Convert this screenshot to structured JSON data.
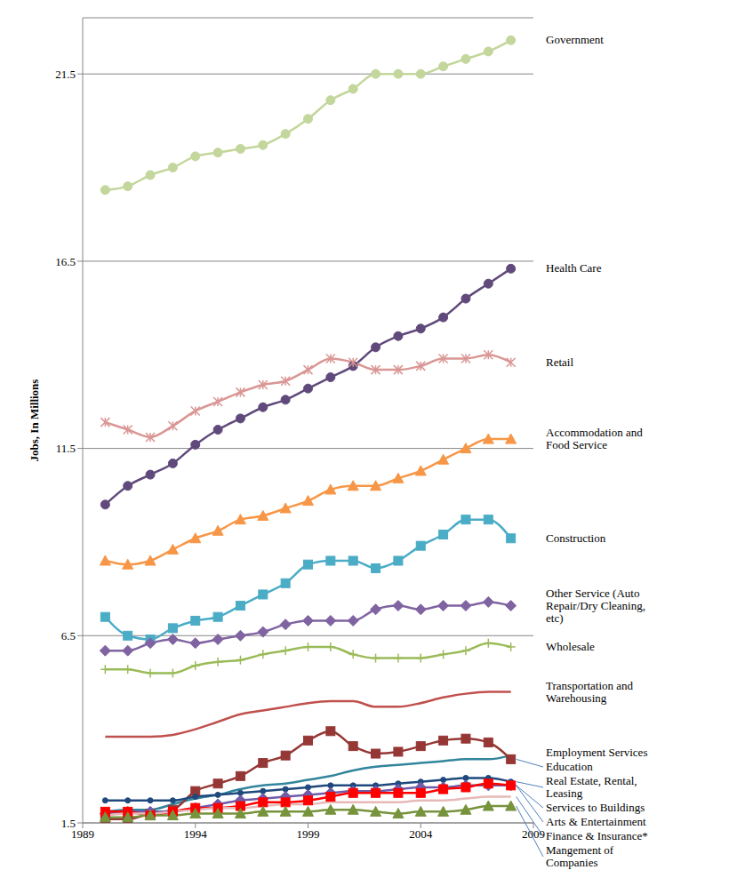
{
  "chart_data": {
    "type": "line",
    "y_label": "Jobs, In Millions",
    "grid": true,
    "x": [
      1990,
      1991,
      1992,
      1993,
      1994,
      1995,
      1996,
      1997,
      1998,
      1999,
      2000,
      2001,
      2002,
      2003,
      2004,
      2005,
      2006,
      2007,
      2008
    ],
    "xlim": [
      1989,
      2009
    ],
    "xticks": [
      1989,
      1994,
      1999,
      2004,
      2009
    ],
    "ylim": [
      1.5,
      23
    ],
    "yticks": [
      1.5,
      6.5,
      11.5,
      16.5,
      21.5
    ],
    "series": [
      {
        "name": "Government",
        "color": "#c3d69b",
        "marker": "circle",
        "values": [
          18.4,
          18.5,
          18.8,
          19.0,
          19.3,
          19.4,
          19.5,
          19.6,
          19.9,
          20.3,
          20.8,
          21.1,
          21.5,
          21.5,
          21.5,
          21.7,
          21.9,
          22.1,
          22.4
        ]
      },
      {
        "name": "Health Care",
        "color": "#604a7b",
        "marker": "circle",
        "values": [
          10.0,
          10.5,
          10.8,
          11.1,
          11.6,
          12.0,
          12.3,
          12.6,
          12.8,
          13.1,
          13.4,
          13.7,
          14.2,
          14.5,
          14.7,
          15.0,
          15.5,
          15.9,
          16.3
        ]
      },
      {
        "name": "Retail",
        "color": "#d99694",
        "marker": "x",
        "values": [
          12.2,
          12.0,
          11.8,
          12.1,
          12.5,
          12.75,
          13.0,
          13.2,
          13.3,
          13.6,
          13.9,
          13.8,
          13.6,
          13.6,
          13.7,
          13.9,
          13.9,
          14.0,
          13.8
        ]
      },
      {
        "name": "Accommodation and Food Service",
        "color": "#f79646",
        "marker": "triangle",
        "values": [
          8.5,
          8.4,
          8.5,
          8.8,
          9.1,
          9.3,
          9.6,
          9.7,
          9.9,
          10.1,
          10.4,
          10.5,
          10.5,
          10.7,
          10.9,
          11.2,
          11.5,
          11.75,
          11.75
        ]
      },
      {
        "name": "Construction",
        "color": "#4bacc6",
        "marker": "square",
        "values": [
          7.0,
          6.5,
          6.4,
          6.7,
          6.9,
          7.0,
          7.3,
          7.6,
          7.9,
          8.4,
          8.5,
          8.5,
          8.3,
          8.5,
          8.9,
          9.2,
          9.6,
          9.6,
          9.1
        ]
      },
      {
        "name": "Other Service (Auto Repair/Dry Cleaning, etc)",
        "color": "#8064a2",
        "marker": "diamond",
        "values": [
          6.1,
          6.1,
          6.3,
          6.4,
          6.3,
          6.4,
          6.5,
          6.6,
          6.8,
          6.9,
          6.9,
          6.9,
          7.2,
          7.3,
          7.2,
          7.3,
          7.3,
          7.4,
          7.3
        ]
      },
      {
        "name": "Wholesale",
        "color": "#9bbb59",
        "marker": "plus",
        "values": [
          5.6,
          5.6,
          5.5,
          5.5,
          5.7,
          5.8,
          5.85,
          6.0,
          6.1,
          6.2,
          6.2,
          6.0,
          5.9,
          5.9,
          5.9,
          6.0,
          6.1,
          6.3,
          6.2
        ]
      },
      {
        "name": "Transportation and Warehousing",
        "color": "#c0504d",
        "marker": "none",
        "values": [
          3.8,
          3.8,
          3.8,
          3.85,
          4.0,
          4.2,
          4.4,
          4.5,
          4.6,
          4.7,
          4.75,
          4.75,
          4.6,
          4.6,
          4.7,
          4.85,
          4.95,
          5.0,
          5.0
        ]
      },
      {
        "name": "Employment Services",
        "color": "#31859c",
        "marker": "none",
        "values": [
          1.8,
          1.85,
          1.85,
          2.0,
          2.15,
          2.25,
          2.4,
          2.5,
          2.55,
          2.65,
          2.75,
          2.9,
          3.0,
          3.05,
          3.1,
          3.15,
          3.2,
          3.2,
          3.3
        ]
      },
      {
        "name": "Education",
        "color": "#953735",
        "marker": "square",
        "values": [
          1.6,
          1.6,
          1.75,
          1.85,
          2.35,
          2.55,
          2.75,
          3.1,
          3.3,
          3.7,
          3.95,
          3.55,
          3.35,
          3.4,
          3.55,
          3.7,
          3.75,
          3.65,
          3.2
        ]
      },
      {
        "name": "Real Estate, Rental, Leasing",
        "color": "#1f497d",
        "marker": "dot",
        "values": [
          2.1,
          2.1,
          2.1,
          2.1,
          2.2,
          2.25,
          2.3,
          2.35,
          2.4,
          2.45,
          2.5,
          2.5,
          2.5,
          2.55,
          2.6,
          2.65,
          2.7,
          2.7,
          2.6
        ]
      },
      {
        "name": "Services to Buildings",
        "color": "#6f5ba8",
        "marker": "diamond",
        "values": [
          1.75,
          1.8,
          1.8,
          1.8,
          1.9,
          2.0,
          2.1,
          2.15,
          2.2,
          2.25,
          2.3,
          2.35,
          2.35,
          2.4,
          2.45,
          2.45,
          2.5,
          2.5,
          2.5
        ]
      },
      {
        "name": "Arts & Entertainment",
        "color": "#ff0000",
        "marker": "square",
        "values": [
          1.8,
          1.8,
          1.7,
          1.8,
          1.9,
          1.9,
          1.95,
          2.05,
          2.05,
          2.1,
          2.2,
          2.3,
          2.3,
          2.3,
          2.3,
          2.4,
          2.45,
          2.55,
          2.5
        ]
      },
      {
        "name": "Finance & Insurance*",
        "color": "#e6b9b8",
        "marker": "none",
        "values": [
          1.7,
          1.75,
          1.75,
          1.8,
          1.85,
          1.9,
          1.9,
          1.95,
          2.0,
          2.0,
          2.05,
          2.05,
          2.05,
          2.05,
          2.1,
          2.1,
          2.15,
          2.2,
          2.2
        ]
      },
      {
        "name": "Mangement of Companies",
        "color": "#77933c",
        "marker": "triangle",
        "values": [
          1.65,
          1.65,
          1.7,
          1.7,
          1.75,
          1.75,
          1.75,
          1.8,
          1.8,
          1.8,
          1.85,
          1.85,
          1.8,
          1.75,
          1.8,
          1.8,
          1.85,
          1.95,
          1.95
        ]
      }
    ]
  }
}
